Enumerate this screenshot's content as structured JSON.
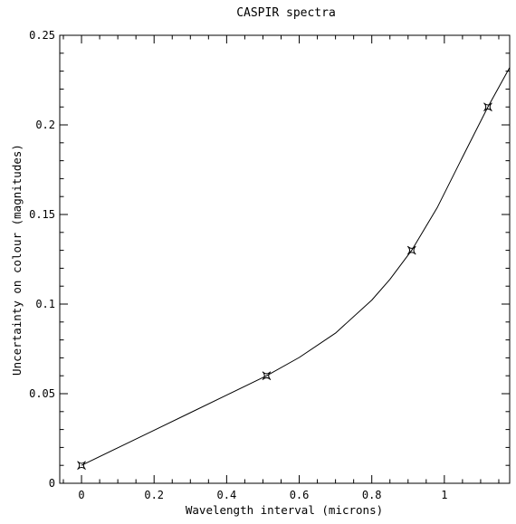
{
  "chart_data": {
    "type": "line",
    "title": "CASPIR spectra",
    "xlabel": "Wavelength interval (microns)",
    "ylabel": "Uncertainty on colour (magnitudes)",
    "xlim": [
      -0.06,
      1.18
    ],
    "ylim": [
      0,
      0.25
    ],
    "xticks": [
      "0",
      "0.2",
      "0.4",
      "0.6",
      "0.8",
      "1"
    ],
    "yticks": [
      "0",
      "0.05",
      "0.1",
      "0.15",
      "0.2",
      "0.25"
    ],
    "grid": false,
    "series": [
      {
        "marker": "star",
        "x": [
          0,
          0.51,
          0.91,
          1.12
        ],
        "y": [
          0.01,
          0.06,
          0.13,
          0.21
        ]
      },
      {
        "marker": "none",
        "x": [
          0,
          0.1,
          0.2,
          0.3,
          0.4,
          0.51,
          0.6,
          0.7,
          0.8,
          0.85,
          0.91,
          0.98,
          1.05,
          1.12,
          1.18
        ],
        "y": [
          0.01,
          0.0198,
          0.0296,
          0.0394,
          0.0492,
          0.06,
          0.0702,
          0.0838,
          0.1022,
          0.1138,
          0.13,
          0.1537,
          0.182,
          0.21,
          0.232
        ]
      }
    ]
  }
}
